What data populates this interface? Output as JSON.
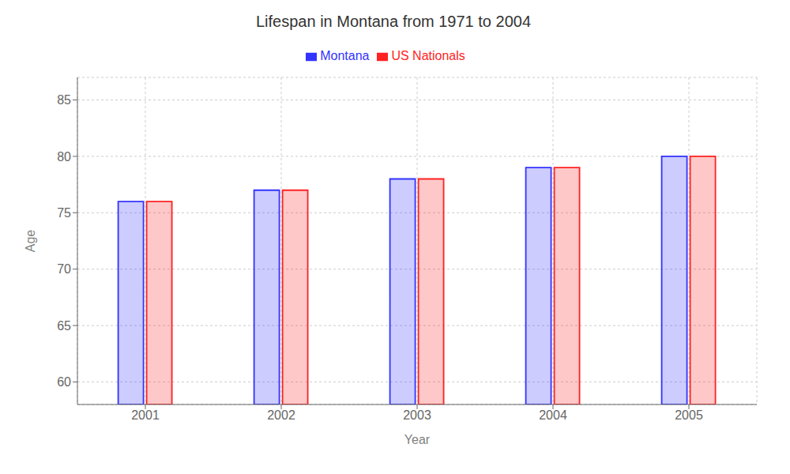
{
  "chart_data": {
    "type": "bar",
    "title": "Lifespan in Montana from 1971 to 2004",
    "x_label": "Year",
    "y_label": "Age",
    "categories": [
      "2001",
      "2002",
      "2003",
      "2004",
      "2005"
    ],
    "series": [
      {
        "name": "Montana",
        "color": "#3333ff",
        "values": [
          76,
          77,
          78,
          79,
          80
        ]
      },
      {
        "name": "US Nationals",
        "color": "#ff2222",
        "values": [
          76,
          77,
          78,
          79,
          80
        ]
      }
    ],
    "ylim": [
      58,
      87
    ],
    "yticks": [
      60,
      65,
      70,
      75,
      80,
      85
    ],
    "grid": true,
    "legend": "top"
  }
}
